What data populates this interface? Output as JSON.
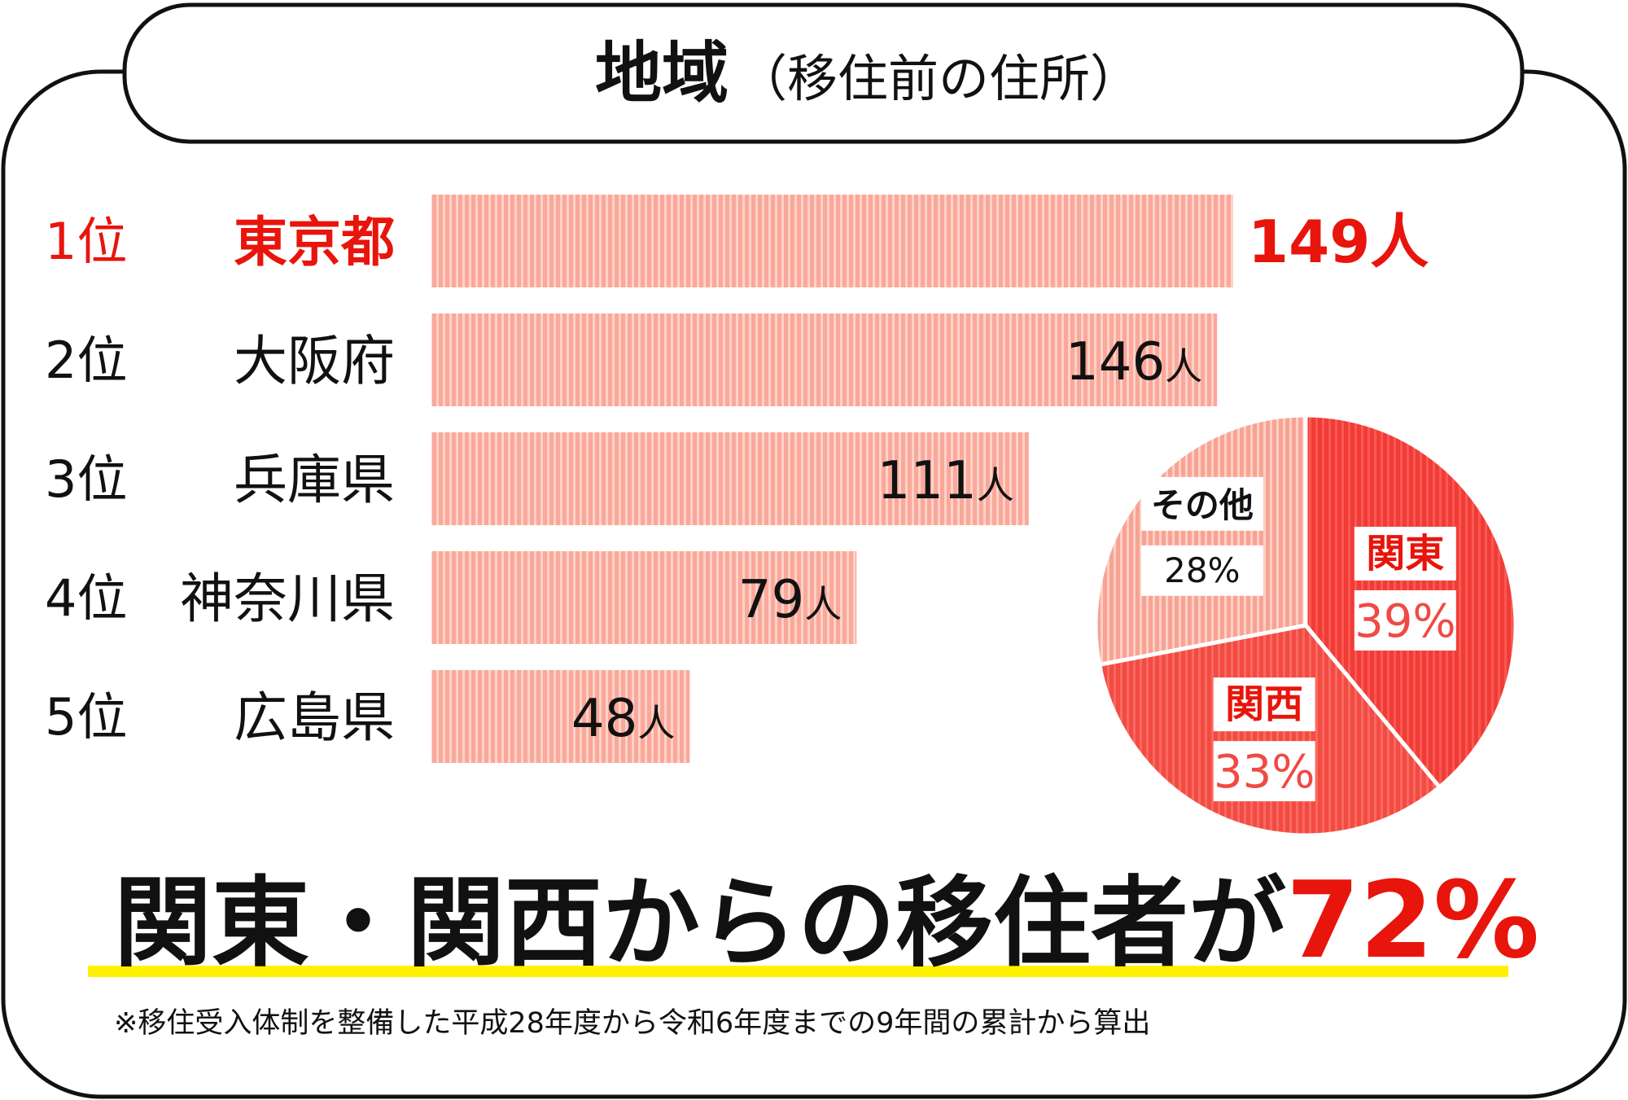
{
  "title": {
    "main": "地域",
    "sub": "（移住前の住所）"
  },
  "chart_data": [
    {
      "type": "bar",
      "categories": [
        "東京都",
        "大阪府",
        "兵庫県",
        "神奈川県",
        "広島県"
      ],
      "ranks": [
        "1位",
        "2位",
        "3位",
        "4位",
        "5位"
      ],
      "values": [
        149,
        146,
        111,
        79,
        48
      ],
      "value_unit": "人",
      "highlight_index": 0,
      "xlim": [
        0,
        149
      ]
    },
    {
      "type": "pie",
      "slices": [
        {
          "label": "関東",
          "value": 39,
          "display": "39%"
        },
        {
          "label": "関西",
          "value": 33,
          "display": "33%"
        },
        {
          "label": "その他",
          "value": 28,
          "display": "28%"
        }
      ]
    }
  ],
  "headline": {
    "text": "関東・関西からの移住者が",
    "highlight": "72%"
  },
  "footnote": "※移住受入体制を整備した平成28年度から令和6年度までの9年間の累計から算出",
  "colors": {
    "accent_red": "#e8150c",
    "bar_fill": "#f9a89a",
    "bar_stripe": "#ffd2c8",
    "pie_kanto": "#f23b36",
    "pie_kansai": "#f34a42",
    "pie_other": "#f7a394",
    "underline_yellow": "#fff200",
    "frame": "#111111"
  }
}
